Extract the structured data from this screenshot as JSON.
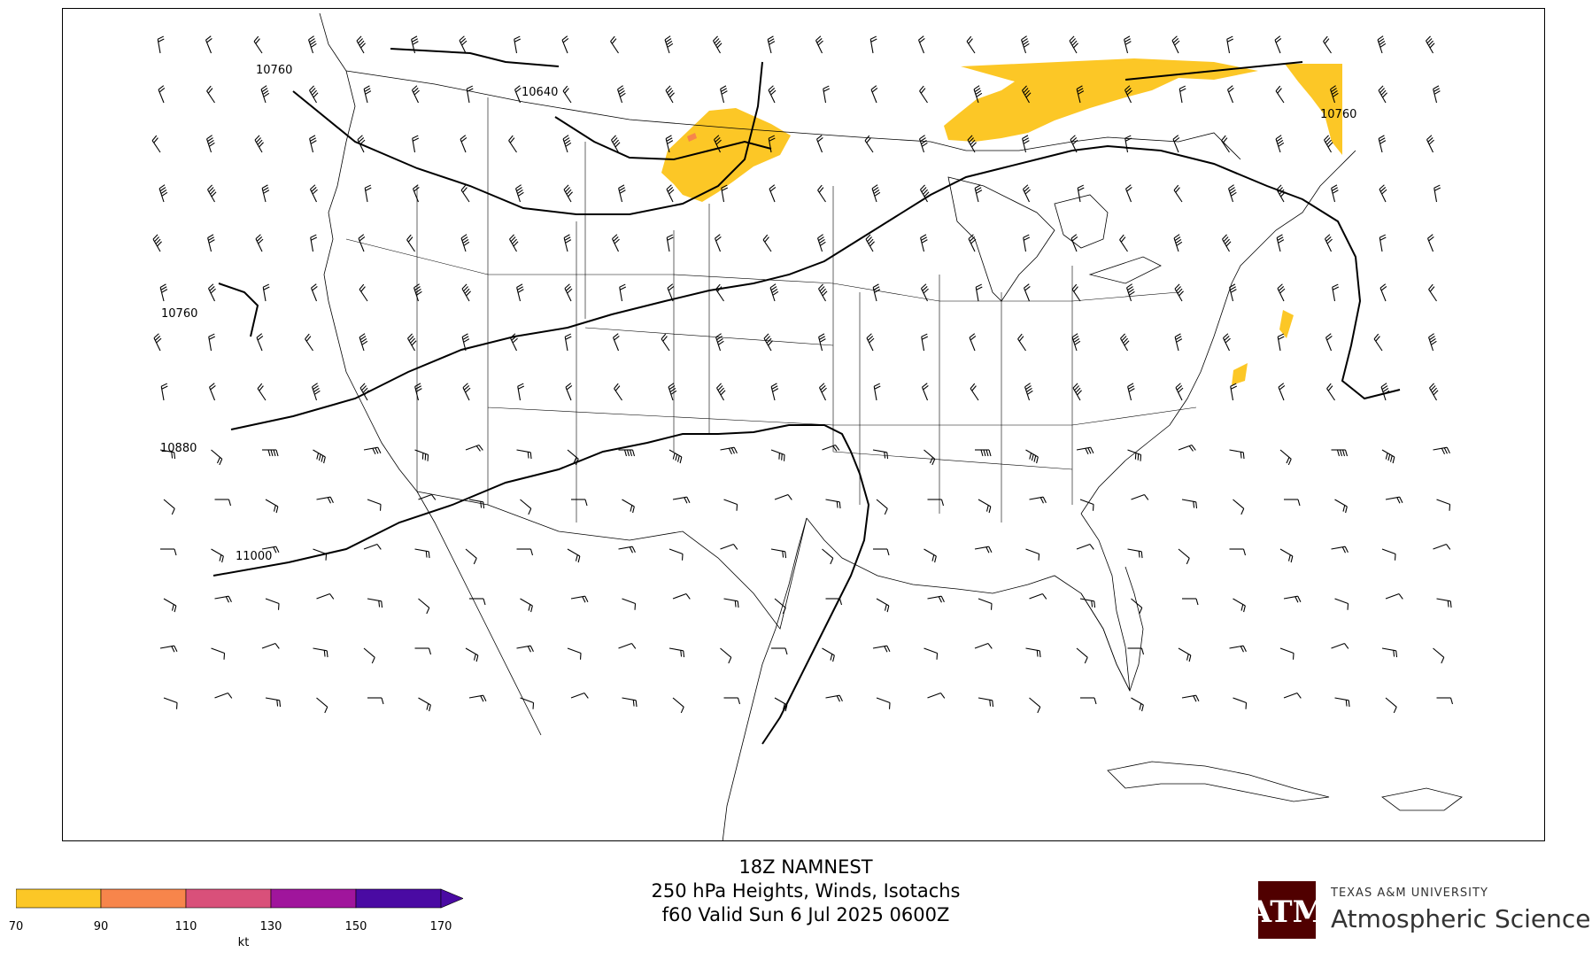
{
  "title": {
    "line1": "18Z NAMNEST",
    "line2": "250 hPa Heights, Winds, Isotachs",
    "line3": "f60 Valid Sun 6 Jul 2025 0600Z"
  },
  "contour_labels": [
    "10760",
    "10640",
    "10760",
    "10760",
    "10880",
    "11000"
  ],
  "colorbar": {
    "ticks": [
      "70",
      "90",
      "110",
      "130",
      "150",
      "170"
    ],
    "unit": "kt",
    "colors": [
      "#fcc726",
      "#f7854b",
      "#d9507a",
      "#a0159c",
      "#4a0aa3"
    ],
    "extend": "max"
  },
  "logo": {
    "university": "TEXAS A&M UNIVERSITY",
    "department": "Atmospheric Sciences",
    "color": "#500000"
  },
  "colors": {
    "isotach_70_90": "#fcc726",
    "isotach_90_110": "#f7854b",
    "contour": "#000000",
    "boundaries": "#000000"
  }
}
